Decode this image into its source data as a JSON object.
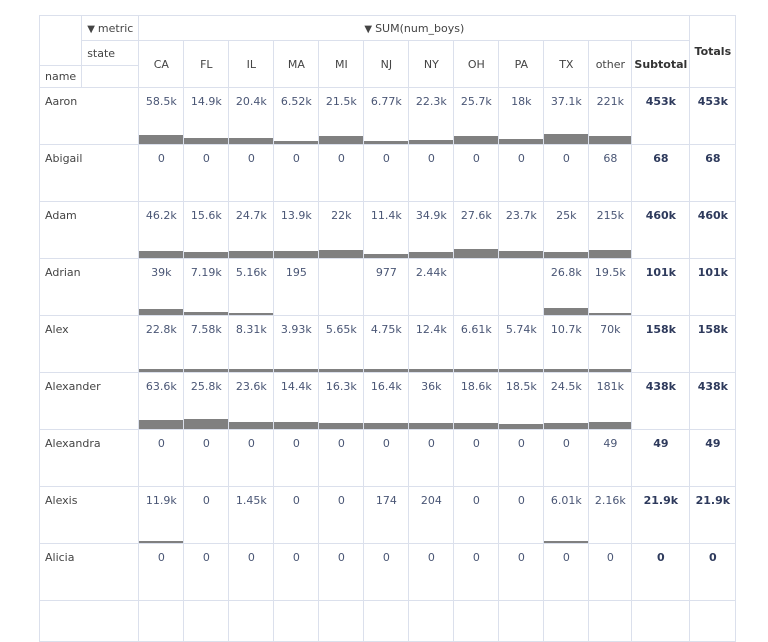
{
  "header": {
    "metric_label": "metric",
    "metric_title": "SUM(num_boys)",
    "state_label": "state",
    "name_label": "name",
    "columns": [
      "CA",
      "FL",
      "IL",
      "MA",
      "MI",
      "NJ",
      "NY",
      "OH",
      "PA",
      "TX",
      "other"
    ],
    "subtotal_label": "Subtotal",
    "totals_label": "Totals",
    "collapse_icon": "▼"
  },
  "colors": {
    "bar": "#808080",
    "border": "#dbe0ec",
    "text": "#4a5675"
  },
  "rows": [
    {
      "name": "Aaron",
      "values": [
        "58.5k",
        "14.9k",
        "20.4k",
        "6.52k",
        "21.5k",
        "6.77k",
        "22.3k",
        "25.7k",
        "18k",
        "37.1k",
        "221k"
      ],
      "bars": [
        9,
        6,
        6,
        3,
        8,
        3,
        4,
        8,
        5,
        10,
        8
      ],
      "subtotal": "453k",
      "total": "453k"
    },
    {
      "name": "Abigail",
      "values": [
        "0",
        "0",
        "0",
        "0",
        "0",
        "0",
        "0",
        "0",
        "0",
        "0",
        "68"
      ],
      "bars": [
        0,
        0,
        0,
        0,
        0,
        0,
        0,
        0,
        0,
        0,
        0
      ],
      "subtotal": "68",
      "total": "68"
    },
    {
      "name": "Adam",
      "values": [
        "46.2k",
        "15.6k",
        "24.7k",
        "13.9k",
        "22k",
        "11.4k",
        "34.9k",
        "27.6k",
        "23.7k",
        "25k",
        "215k"
      ],
      "bars": [
        7,
        6,
        7,
        7,
        8,
        4,
        6,
        9,
        7,
        6,
        8
      ],
      "subtotal": "460k",
      "total": "460k"
    },
    {
      "name": "Adrian",
      "values": [
        "39k",
        "7.19k",
        "5.16k",
        "195",
        "",
        "977",
        "2.44k",
        "",
        "",
        "26.8k",
        "19.5k"
      ],
      "bars": [
        6,
        3,
        2,
        0,
        0,
        0,
        0,
        0,
        0,
        7,
        2
      ],
      "subtotal": "101k",
      "total": "101k"
    },
    {
      "name": "Alex",
      "values": [
        "22.8k",
        "7.58k",
        "8.31k",
        "3.93k",
        "5.65k",
        "4.75k",
        "12.4k",
        "6.61k",
        "5.74k",
        "10.7k",
        "70k"
      ],
      "bars": [
        3,
        3,
        3,
        3,
        3,
        3,
        3,
        3,
        3,
        3,
        3
      ],
      "subtotal": "158k",
      "total": "158k"
    },
    {
      "name": "Alexander",
      "values": [
        "63.6k",
        "25.8k",
        "23.6k",
        "14.4k",
        "16.3k",
        "16.4k",
        "36k",
        "18.6k",
        "18.5k",
        "24.5k",
        "181k"
      ],
      "bars": [
        9,
        10,
        7,
        7,
        6,
        6,
        6,
        6,
        5,
        6,
        7
      ],
      "subtotal": "438k",
      "total": "438k"
    },
    {
      "name": "Alexandra",
      "values": [
        "0",
        "0",
        "0",
        "0",
        "0",
        "0",
        "0",
        "0",
        "0",
        "0",
        "49"
      ],
      "bars": [
        0,
        0,
        0,
        0,
        0,
        0,
        0,
        0,
        0,
        0,
        0
      ],
      "subtotal": "49",
      "total": "49"
    },
    {
      "name": "Alexis",
      "values": [
        "11.9k",
        "0",
        "1.45k",
        "0",
        "0",
        "174",
        "204",
        "0",
        "0",
        "6.01k",
        "2.16k"
      ],
      "bars": [
        2,
        0,
        0,
        0,
        0,
        0,
        0,
        0,
        0,
        2,
        0
      ],
      "subtotal": "21.9k",
      "total": "21.9k"
    },
    {
      "name": "Alicia",
      "values": [
        "0",
        "0",
        "0",
        "0",
        "0",
        "0",
        "0",
        "0",
        "0",
        "0",
        "0"
      ],
      "bars": [
        0,
        0,
        0,
        0,
        0,
        0,
        0,
        0,
        0,
        0,
        0
      ],
      "subtotal": "0",
      "total": "0"
    }
  ]
}
